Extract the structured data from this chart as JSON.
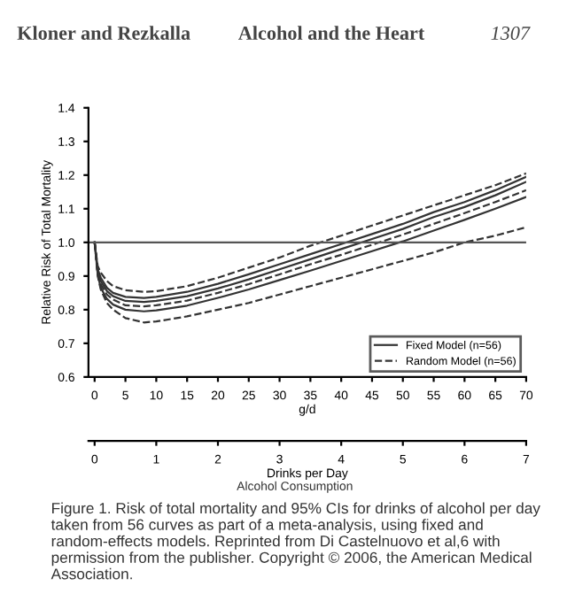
{
  "chart_data": {
    "type": "line",
    "annotations": [
      "Kloner and Rezkalla",
      "Alcohol and the Heart",
      "1307",
      "Alcohol Consumption",
      "Figure 1. Risk of total mortality and 95% CIs for drinks of alcohol per day taken from 56 curves as part of a meta-analysis, using fixed and random-effects models. Reprinted from Di Castelnuovo et al,6 with permission from the publisher. Copyright © 2006, the American Medical Association."
    ],
    "xlabel": "g/d",
    "ylabel": "Relative Risk of Total Mortality",
    "x2label": "Drinks per Day",
    "x": [
      0,
      0.5,
      1,
      2,
      3,
      5,
      8,
      10,
      15,
      20,
      25,
      30,
      35,
      40,
      45,
      50,
      55,
      60,
      65,
      70
    ],
    "series": [
      {
        "color": "#333333",
        "line_style": "dashed",
        "values": [
          1.0,
          0.93,
          0.91,
          0.885,
          0.87,
          0.858,
          0.853,
          0.855,
          0.87,
          0.895,
          0.925,
          0.955,
          0.99,
          1.02,
          1.05,
          1.08,
          1.11,
          1.14,
          1.17,
          1.205
        ]
      },
      {
        "color": "#333333",
        "line_style": "solid",
        "values": [
          1.0,
          0.92,
          0.895,
          0.865,
          0.85,
          0.838,
          0.835,
          0.838,
          0.853,
          0.877,
          0.905,
          0.935,
          0.965,
          0.995,
          1.025,
          1.055,
          1.09,
          1.12,
          1.155,
          1.195
        ]
      },
      {
        "name": "Fixed Model (n=56)",
        "color": "#333333",
        "line_style": "solid",
        "values": [
          1.0,
          0.915,
          0.885,
          0.855,
          0.84,
          0.826,
          0.823,
          0.826,
          0.84,
          0.863,
          0.89,
          0.92,
          0.95,
          0.98,
          1.01,
          1.04,
          1.075,
          1.105,
          1.14,
          1.18
        ]
      },
      {
        "name": "Random Model (n=56)",
        "color": "#333333",
        "line_style": "dashed",
        "values": [
          1.0,
          0.91,
          0.875,
          0.845,
          0.83,
          0.813,
          0.81,
          0.813,
          0.827,
          0.85,
          0.876,
          0.905,
          0.935,
          0.963,
          0.993,
          1.023,
          1.055,
          1.087,
          1.12,
          1.155
        ]
      },
      {
        "color": "#333333",
        "line_style": "solid",
        "values": [
          1.0,
          0.905,
          0.865,
          0.832,
          0.815,
          0.8,
          0.795,
          0.798,
          0.812,
          0.835,
          0.86,
          0.888,
          0.916,
          0.945,
          0.974,
          1.003,
          1.035,
          1.067,
          1.1,
          1.135
        ]
      },
      {
        "color": "#333333",
        "line_style": "dashed",
        "values": [
          1.0,
          0.9,
          0.86,
          0.82,
          0.8,
          0.775,
          0.762,
          0.765,
          0.78,
          0.8,
          0.82,
          0.845,
          0.87,
          0.895,
          0.92,
          0.945,
          0.97,
          1.0,
          1.02,
          1.045
        ]
      }
    ],
    "xlim": [
      -1,
      70
    ],
    "xticks": [
      0,
      5,
      10,
      15,
      20,
      25,
      30,
      35,
      40,
      45,
      50,
      55,
      60,
      65,
      70
    ],
    "ylim": [
      0.6,
      1.4
    ],
    "yticks": [
      0.6,
      0.7,
      0.8,
      0.9,
      {
        "value": 1.0,
        "label": "1.0"
      },
      1.1,
      1.2,
      1.3,
      1.4
    ],
    "x2lim": [
      -0.1,
      7
    ],
    "x2ticks": [
      0,
      1,
      2,
      3,
      4,
      5,
      6,
      7
    ],
    "ref_lines": [
      {
        "axis": "y",
        "value": 1.0,
        "color": "#555555"
      }
    ],
    "legend": "bottom right",
    "grid": false,
    "marker": "none"
  }
}
